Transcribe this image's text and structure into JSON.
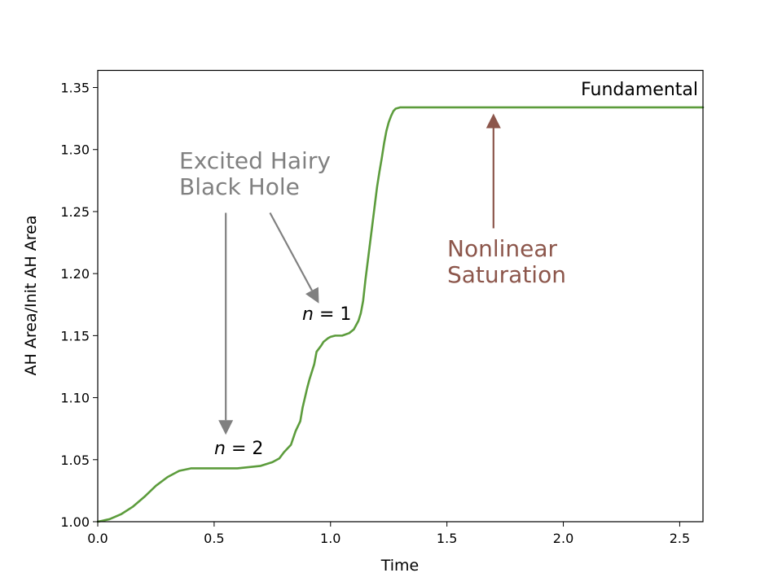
{
  "chart_data": {
    "type": "line",
    "title": "",
    "xlabel": "Time",
    "ylabel": "AH Area/Init AH Area",
    "xlim": [
      0.0,
      2.6
    ],
    "ylim": [
      1.0,
      1.35
    ],
    "grid": false,
    "x_ticks": [
      0.0,
      0.5,
      1.0,
      1.5,
      2.0,
      2.5
    ],
    "x_tick_labels": [
      "0.0",
      "0.5",
      "1.0",
      "1.5",
      "2.0",
      "2.5"
    ],
    "y_ticks": [
      1.0,
      1.05,
      1.1,
      1.15,
      1.2,
      1.25,
      1.3,
      1.35
    ],
    "y_tick_labels": [
      "1.00",
      "1.05",
      "1.10",
      "1.15",
      "1.20",
      "1.25",
      "1.30",
      "1.35"
    ],
    "series": [
      {
        "color": "#5c9c3c",
        "x": [
          0.0,
          0.05,
          0.1,
          0.15,
          0.2,
          0.25,
          0.3,
          0.35,
          0.4,
          0.45,
          0.5,
          0.55,
          0.6,
          0.65,
          0.7,
          0.75,
          0.78,
          0.8,
          0.83,
          0.85,
          0.87,
          0.88,
          0.9,
          0.91,
          0.93,
          0.94,
          0.96,
          0.97,
          0.99,
          1.0,
          1.02,
          1.05,
          1.08,
          1.1,
          1.12,
          1.13,
          1.14,
          1.15,
          1.16,
          1.17,
          1.18,
          1.19,
          1.2,
          1.21,
          1.22,
          1.23,
          1.24,
          1.25,
          1.26,
          1.27,
          1.28,
          1.3,
          1.32,
          1.35,
          1.4,
          1.5,
          2.0,
          2.6
        ],
        "y": [
          1.0,
          1.002,
          1.006,
          1.012,
          1.02,
          1.029,
          1.036,
          1.041,
          1.043,
          1.043,
          1.043,
          1.043,
          1.043,
          1.044,
          1.045,
          1.048,
          1.051,
          1.056,
          1.062,
          1.073,
          1.081,
          1.092,
          1.108,
          1.115,
          1.127,
          1.137,
          1.142,
          1.145,
          1.148,
          1.149,
          1.15,
          1.15,
          1.152,
          1.155,
          1.162,
          1.168,
          1.178,
          1.195,
          1.21,
          1.225,
          1.24,
          1.255,
          1.27,
          1.282,
          1.293,
          1.305,
          1.315,
          1.322,
          1.327,
          1.331,
          1.333,
          1.334,
          1.334,
          1.334,
          1.334,
          1.334,
          1.334,
          1.334
        ]
      }
    ],
    "annotations": [
      {
        "id": "fundamental",
        "text": "Fundamental"
      },
      {
        "id": "excited",
        "lines": [
          "Excited Hairy",
          "Black Hole"
        ],
        "color": "#808080"
      },
      {
        "id": "saturation",
        "lines": [
          "Nonlinear",
          "Saturation"
        ],
        "color": "#8c564b"
      },
      {
        "id": "n1",
        "italic": "n",
        "rest": " = 1"
      },
      {
        "id": "n2",
        "italic": "n",
        "rest": " = 2"
      }
    ],
    "arrows": [
      {
        "id": "arrow-excited-n2",
        "color": "#808080",
        "from": [
          0.55,
          1.249
        ],
        "to": [
          0.55,
          1.07
        ]
      },
      {
        "id": "arrow-excited-n1",
        "color": "#808080",
        "from": [
          0.74,
          1.249
        ],
        "to": [
          0.95,
          1.176
        ]
      },
      {
        "id": "arrow-saturation",
        "color": "#8c564b",
        "from": [
          1.7,
          1.2365
        ],
        "to": [
          1.7,
          1.329
        ]
      }
    ]
  }
}
